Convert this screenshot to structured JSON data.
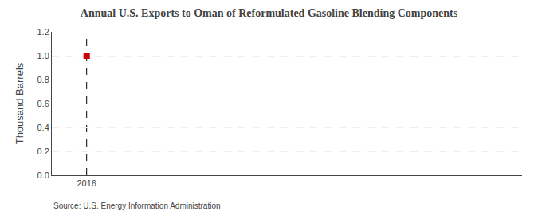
{
  "chart_data": {
    "type": "scatter",
    "title": "Annual U.S. Exports to Oman of Reformulated Gasoline Blending Components",
    "ylabel": "Thousand Barrels",
    "source": "Source: U.S. Energy Information Administration",
    "x": [
      2016
    ],
    "values": [
      1.0
    ],
    "color": "#cc0000",
    "marker": "square",
    "vline_x": 2016,
    "xlim": [
      2015.6,
      2021.0
    ],
    "xticks": [
      2016
    ],
    "ylim": [
      0.0,
      1.2
    ],
    "yticks": [
      {
        "value": 0.0,
        "label": "0.0"
      },
      0.2,
      0.4,
      0.6,
      0.8,
      {
        "value": 1.0,
        "label": "1.0"
      },
      1.2
    ],
    "grid": "y"
  }
}
